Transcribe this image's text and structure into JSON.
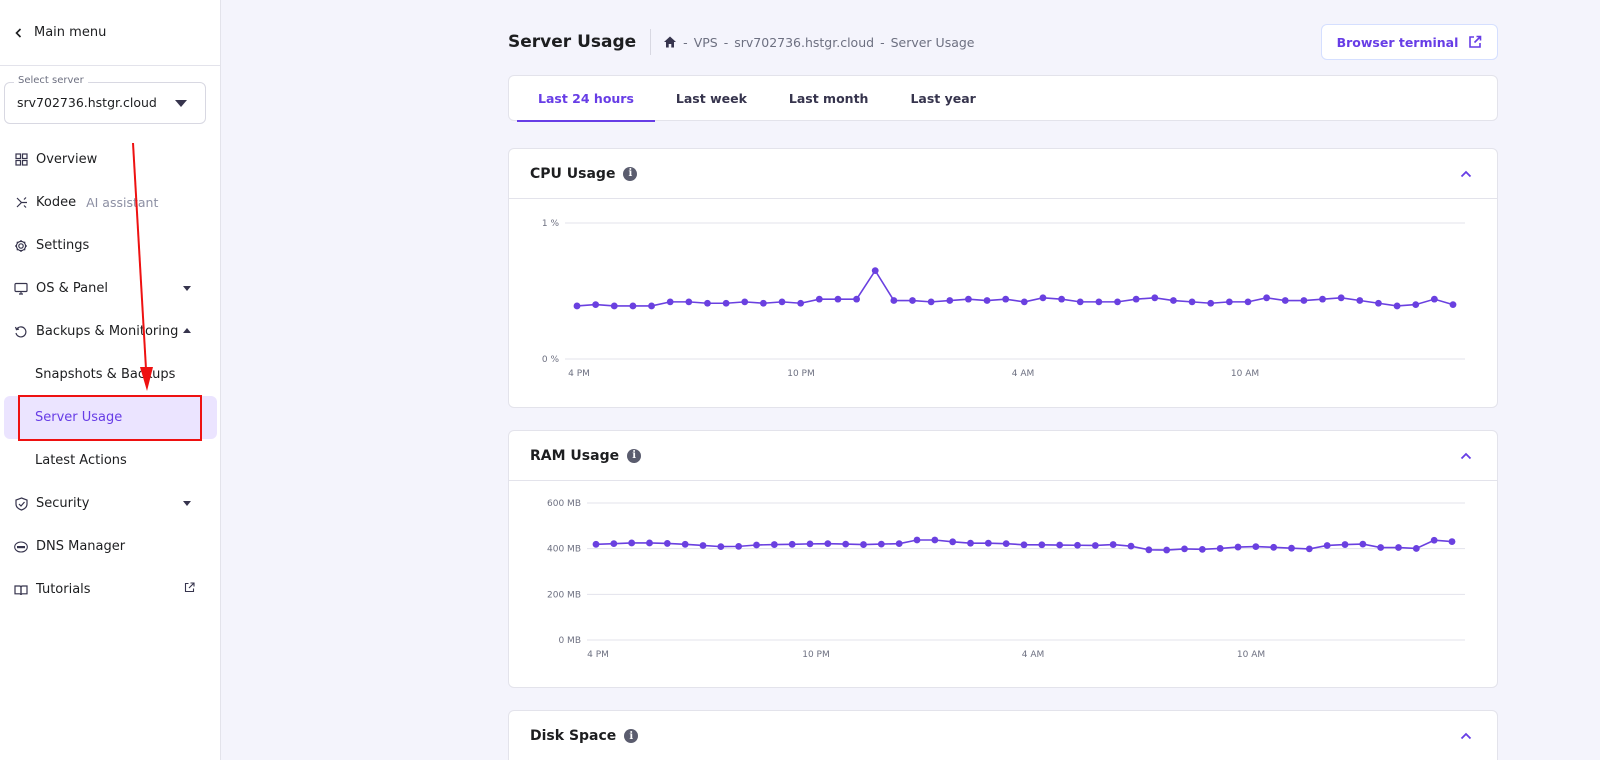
{
  "sidebar": {
    "main_menu": "Main menu",
    "select_server_label": "Select server",
    "selected_server": "srv702736.hstgr.cloud",
    "items": [
      {
        "label": "Overview",
        "icon": "grid-icon"
      },
      {
        "label": "Kodee",
        "sub": "AI assistant",
        "icon": "sparkle-icon"
      },
      {
        "label": "Settings",
        "icon": "gear-icon"
      },
      {
        "label": "OS & Panel",
        "icon": "monitor-icon",
        "expand": "collapsed"
      },
      {
        "label": "Backups & Monitoring",
        "icon": "history-icon",
        "expand": "expanded"
      },
      {
        "label": "Snapshots & Backups",
        "sub_item": true
      },
      {
        "label": "Server Usage",
        "sub_item": true,
        "active": true
      },
      {
        "label": "Latest Actions",
        "sub_item": true
      },
      {
        "label": "Security",
        "icon": "shield-icon",
        "expand": "collapsed"
      },
      {
        "label": "DNS Manager",
        "icon": "dns-icon"
      },
      {
        "label": "Tutorials",
        "icon": "book-icon",
        "external": true
      }
    ]
  },
  "header": {
    "title": "Server Usage",
    "breadcrumb": [
      "VPS",
      "srv702736.hstgr.cloud",
      "Server Usage"
    ],
    "breadcrumb_sep": "-",
    "browser_terminal": "Browser terminal"
  },
  "tabs": [
    "Last 24 hours",
    "Last week",
    "Last month",
    "Last year"
  ],
  "active_tab": "Last 24 hours",
  "colors": {
    "accent": "#673de6",
    "line": "#6a40e0",
    "annotation": "#ee1111"
  },
  "chart_data": [
    {
      "type": "line",
      "title": "CPU Usage",
      "ylabels": [
        "1 %",
        "0 %"
      ],
      "ylim": [
        0,
        1
      ],
      "xlabels": [
        "4 PM",
        "10 PM",
        "4 AM",
        "10 AM"
      ],
      "values": [
        0.39,
        0.4,
        0.39,
        0.39,
        0.39,
        0.42,
        0.42,
        0.41,
        0.41,
        0.42,
        0.41,
        0.42,
        0.41,
        0.44,
        0.44,
        0.44,
        0.65,
        0.43,
        0.43,
        0.42,
        0.43,
        0.44,
        0.43,
        0.44,
        0.42,
        0.45,
        0.44,
        0.42,
        0.42,
        0.42,
        0.44,
        0.45,
        0.43,
        0.42,
        0.41,
        0.42,
        0.42,
        0.45,
        0.43,
        0.43,
        0.44,
        0.45,
        0.43,
        0.41,
        0.39,
        0.4,
        0.44,
        0.4
      ]
    },
    {
      "type": "line",
      "title": "RAM Usage",
      "ylabels": [
        "600 MB",
        "400 MB",
        "200 MB",
        "0 MB"
      ],
      "ylim": [
        0,
        600
      ],
      "xlabels": [
        "4 PM",
        "10 PM",
        "4 AM",
        "10 AM"
      ],
      "values": [
        419,
        422,
        425,
        425,
        423,
        419,
        414,
        409,
        410,
        416,
        418,
        419,
        421,
        422,
        420,
        418,
        420,
        422,
        438,
        438,
        430,
        424,
        424,
        422,
        417,
        417,
        416,
        415,
        414,
        418,
        411,
        395,
        394,
        399,
        397,
        401,
        407,
        409,
        406,
        402,
        399,
        414,
        418,
        420,
        405,
        405,
        401,
        437,
        431
      ]
    },
    {
      "type": "line",
      "title": "Disk Space"
    }
  ]
}
